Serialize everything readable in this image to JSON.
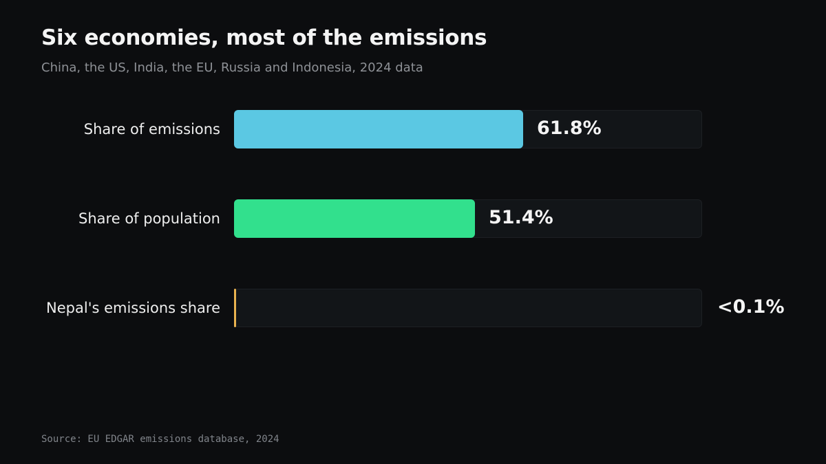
{
  "header": {
    "title": "Six economies, most of the emissions",
    "subtitle": "China, the US, India, the EU, Russia and Indonesia, 2024 data"
  },
  "footer": {
    "source": "Source: EU EDGAR emissions database, 2024"
  },
  "chart_data": {
    "type": "bar",
    "orientation": "horizontal",
    "title": "Six economies, most of the emissions",
    "subtitle": "China, the US, India, the EU, Russia and Indonesia, 2024 data",
    "categories": [
      "Share of emissions",
      "Share of population",
      "Nepal's emissions share"
    ],
    "values": [
      61.8,
      51.4,
      0.05
    ],
    "value_labels": [
      "61.8%",
      "51.4%",
      "<0.1%"
    ],
    "colors": [
      "#5bc8e3",
      "#32e08d",
      "#e9b24f"
    ],
    "xlim": [
      0,
      100
    ],
    "unit": "%",
    "grid": false,
    "legend": "none"
  }
}
